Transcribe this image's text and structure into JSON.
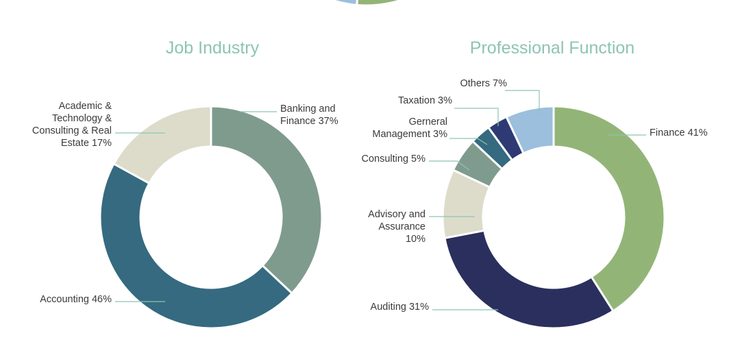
{
  "chart_data": [
    {
      "type": "pie",
      "title": "Job Industry",
      "slices": [
        {
          "label_lines": [
            "Banking and",
            "Finance 37%"
          ],
          "value": 37,
          "color": "#7f9b8e"
        },
        {
          "label_lines": [
            "Accounting 46%"
          ],
          "value": 46,
          "color": "#356a80"
        },
        {
          "label_lines": [
            "Academic &",
            "Technology &",
            "Consulting & Real",
            "Estate 17%"
          ],
          "value": 17,
          "color": "#dddccb"
        }
      ]
    },
    {
      "type": "pie",
      "title": "Professional Function",
      "slices": [
        {
          "label_lines": [
            "Finance 41%"
          ],
          "value": 41,
          "color": "#92b577"
        },
        {
          "label_lines": [
            "Auditing 31%"
          ],
          "value": 31,
          "color": "#2a2f5e"
        },
        {
          "label_lines": [
            "Advisory and",
            "Assurance",
            "10%"
          ],
          "value": 10,
          "color": "#dddccb"
        },
        {
          "label_lines": [
            "Consulting 5%"
          ],
          "value": 5,
          "color": "#7f9b8e"
        },
        {
          "label_lines": [
            "Gerneral",
            "Management 3%"
          ],
          "value": 3,
          "color": "#356a80"
        },
        {
          "label_lines": [
            "Taxation 3%"
          ],
          "value": 3,
          "color": "#2d3a74"
        },
        {
          "label_lines": [
            "Others 7%"
          ],
          "value": 7,
          "color": "#9bbfdc"
        }
      ]
    }
  ],
  "top_partial_chart": {
    "colors": [
      "#9bbfdc",
      "#92b577"
    ]
  }
}
